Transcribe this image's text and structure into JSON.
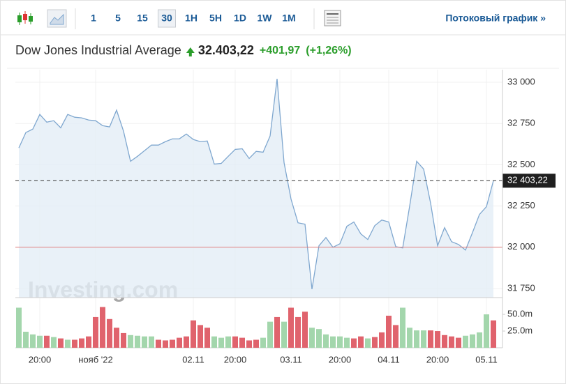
{
  "toolbar": {
    "intervals": [
      "1",
      "5",
      "15",
      "30",
      "1H",
      "5H",
      "1D",
      "1W",
      "1M"
    ],
    "selected_interval": 3,
    "streaming_link": "Потоковый график »"
  },
  "header": {
    "name": "Dow Jones Industrial Average",
    "price": "32.403,22",
    "change": "+401,97",
    "change_pct": "(+1,26%)"
  },
  "chart_data": {
    "type": "line",
    "color": "#7fa7cf",
    "fill_color": "#e4edf6",
    "categories": [
      null,
      null,
      null,
      "20:00",
      null,
      null,
      null,
      null,
      null,
      null,
      null,
      "нояб '22",
      null,
      null,
      null,
      null,
      null,
      null,
      null,
      null,
      null,
      null,
      null,
      null,
      null,
      "02.11",
      null,
      null,
      null,
      null,
      null,
      "20:00",
      null,
      null,
      null,
      null,
      null,
      null,
      null,
      "03.11",
      null,
      null,
      null,
      null,
      null,
      null,
      "20:00",
      null,
      null,
      null,
      null,
      null,
      null,
      "04.11",
      null,
      null,
      null,
      null,
      null,
      null,
      "20:00",
      null,
      null,
      null,
      null,
      null,
      null,
      "05.11",
      null
    ],
    "values": [
      32602,
      32695,
      32716,
      32805,
      32758,
      32767,
      32724,
      32805,
      32788,
      32784,
      32771,
      32767,
      32737,
      32729,
      32831,
      32703,
      32521,
      32551,
      32585,
      32619,
      32619,
      32640,
      32657,
      32657,
      32686,
      32653,
      32640,
      32644,
      32504,
      32508,
      32551,
      32593,
      32597,
      32538,
      32581,
      32576,
      32674,
      33021,
      32513,
      32292,
      32148,
      32140,
      31746,
      32009,
      32059,
      32000,
      32021,
      32127,
      32153,
      32081,
      32047,
      32131,
      32165,
      32153,
      32004,
      31996,
      32250,
      32521,
      32474,
      32267,
      32009,
      32119,
      32034,
      32017,
      31983,
      32089,
      32199,
      32246,
      32403.22
    ],
    "ylim": [
      31695,
      33076
    ],
    "yticks": [
      {
        "value": 31750,
        "label": "31 750"
      },
      {
        "value": 32000,
        "label": "32 000"
      },
      {
        "value": 32250,
        "label": "32 250"
      },
      {
        "value": 32500,
        "label": "32 500"
      },
      {
        "value": 32750,
        "label": "32 750"
      },
      {
        "value": 33000,
        "label": "33 000"
      }
    ],
    "grid": true,
    "reference_line": {
      "value": 32000,
      "color": "#e08080"
    },
    "last_price": {
      "value": 32403.22,
      "label": "32 403,22"
    },
    "watermark": "Investing.com",
    "volume": {
      "values": [
        60,
        24,
        20,
        18,
        18,
        16,
        14,
        12,
        12,
        14,
        17,
        46,
        61,
        43,
        30,
        22,
        19,
        18,
        17,
        17,
        12,
        11,
        12,
        15,
        17,
        41,
        34,
        30,
        17,
        15,
        17,
        17,
        15,
        11,
        12,
        15,
        39,
        46,
        39,
        60,
        46,
        54,
        30,
        28,
        20,
        17,
        17,
        15,
        14,
        17,
        14,
        16,
        23,
        48,
        34,
        60,
        30,
        26,
        26,
        26,
        25,
        19,
        17,
        15,
        18,
        20,
        23,
        50,
        41
      ],
      "directions": [
        "up",
        "up",
        "up",
        "up",
        "down",
        "up",
        "down",
        "up",
        "down",
        "down",
        "down",
        "down",
        "down",
        "down",
        "down",
        "down",
        "up",
        "up",
        "up",
        "up",
        "down",
        "down",
        "down",
        "down",
        "down",
        "down",
        "down",
        "down",
        "up",
        "up",
        "up",
        "down",
        "down",
        "down",
        "down",
        "up",
        "up",
        "down",
        "up",
        "down",
        "down",
        "down",
        "up",
        "up",
        "up",
        "up",
        "up",
        "up",
        "down",
        "down",
        "up",
        "down",
        "down",
        "down",
        "down",
        "up",
        "up",
        "up",
        "up",
        "down",
        "down",
        "down",
        "down",
        "down",
        "up",
        "up",
        "up",
        "up",
        "down"
      ],
      "palette": {
        "up": "#a3d6ac",
        "down": "#e0636d"
      },
      "vlim": [
        0,
        72
      ],
      "vticks": [
        {
          "value": 25,
          "label": "25.0m"
        },
        {
          "value": 50,
          "label": "50.0m"
        }
      ]
    }
  }
}
